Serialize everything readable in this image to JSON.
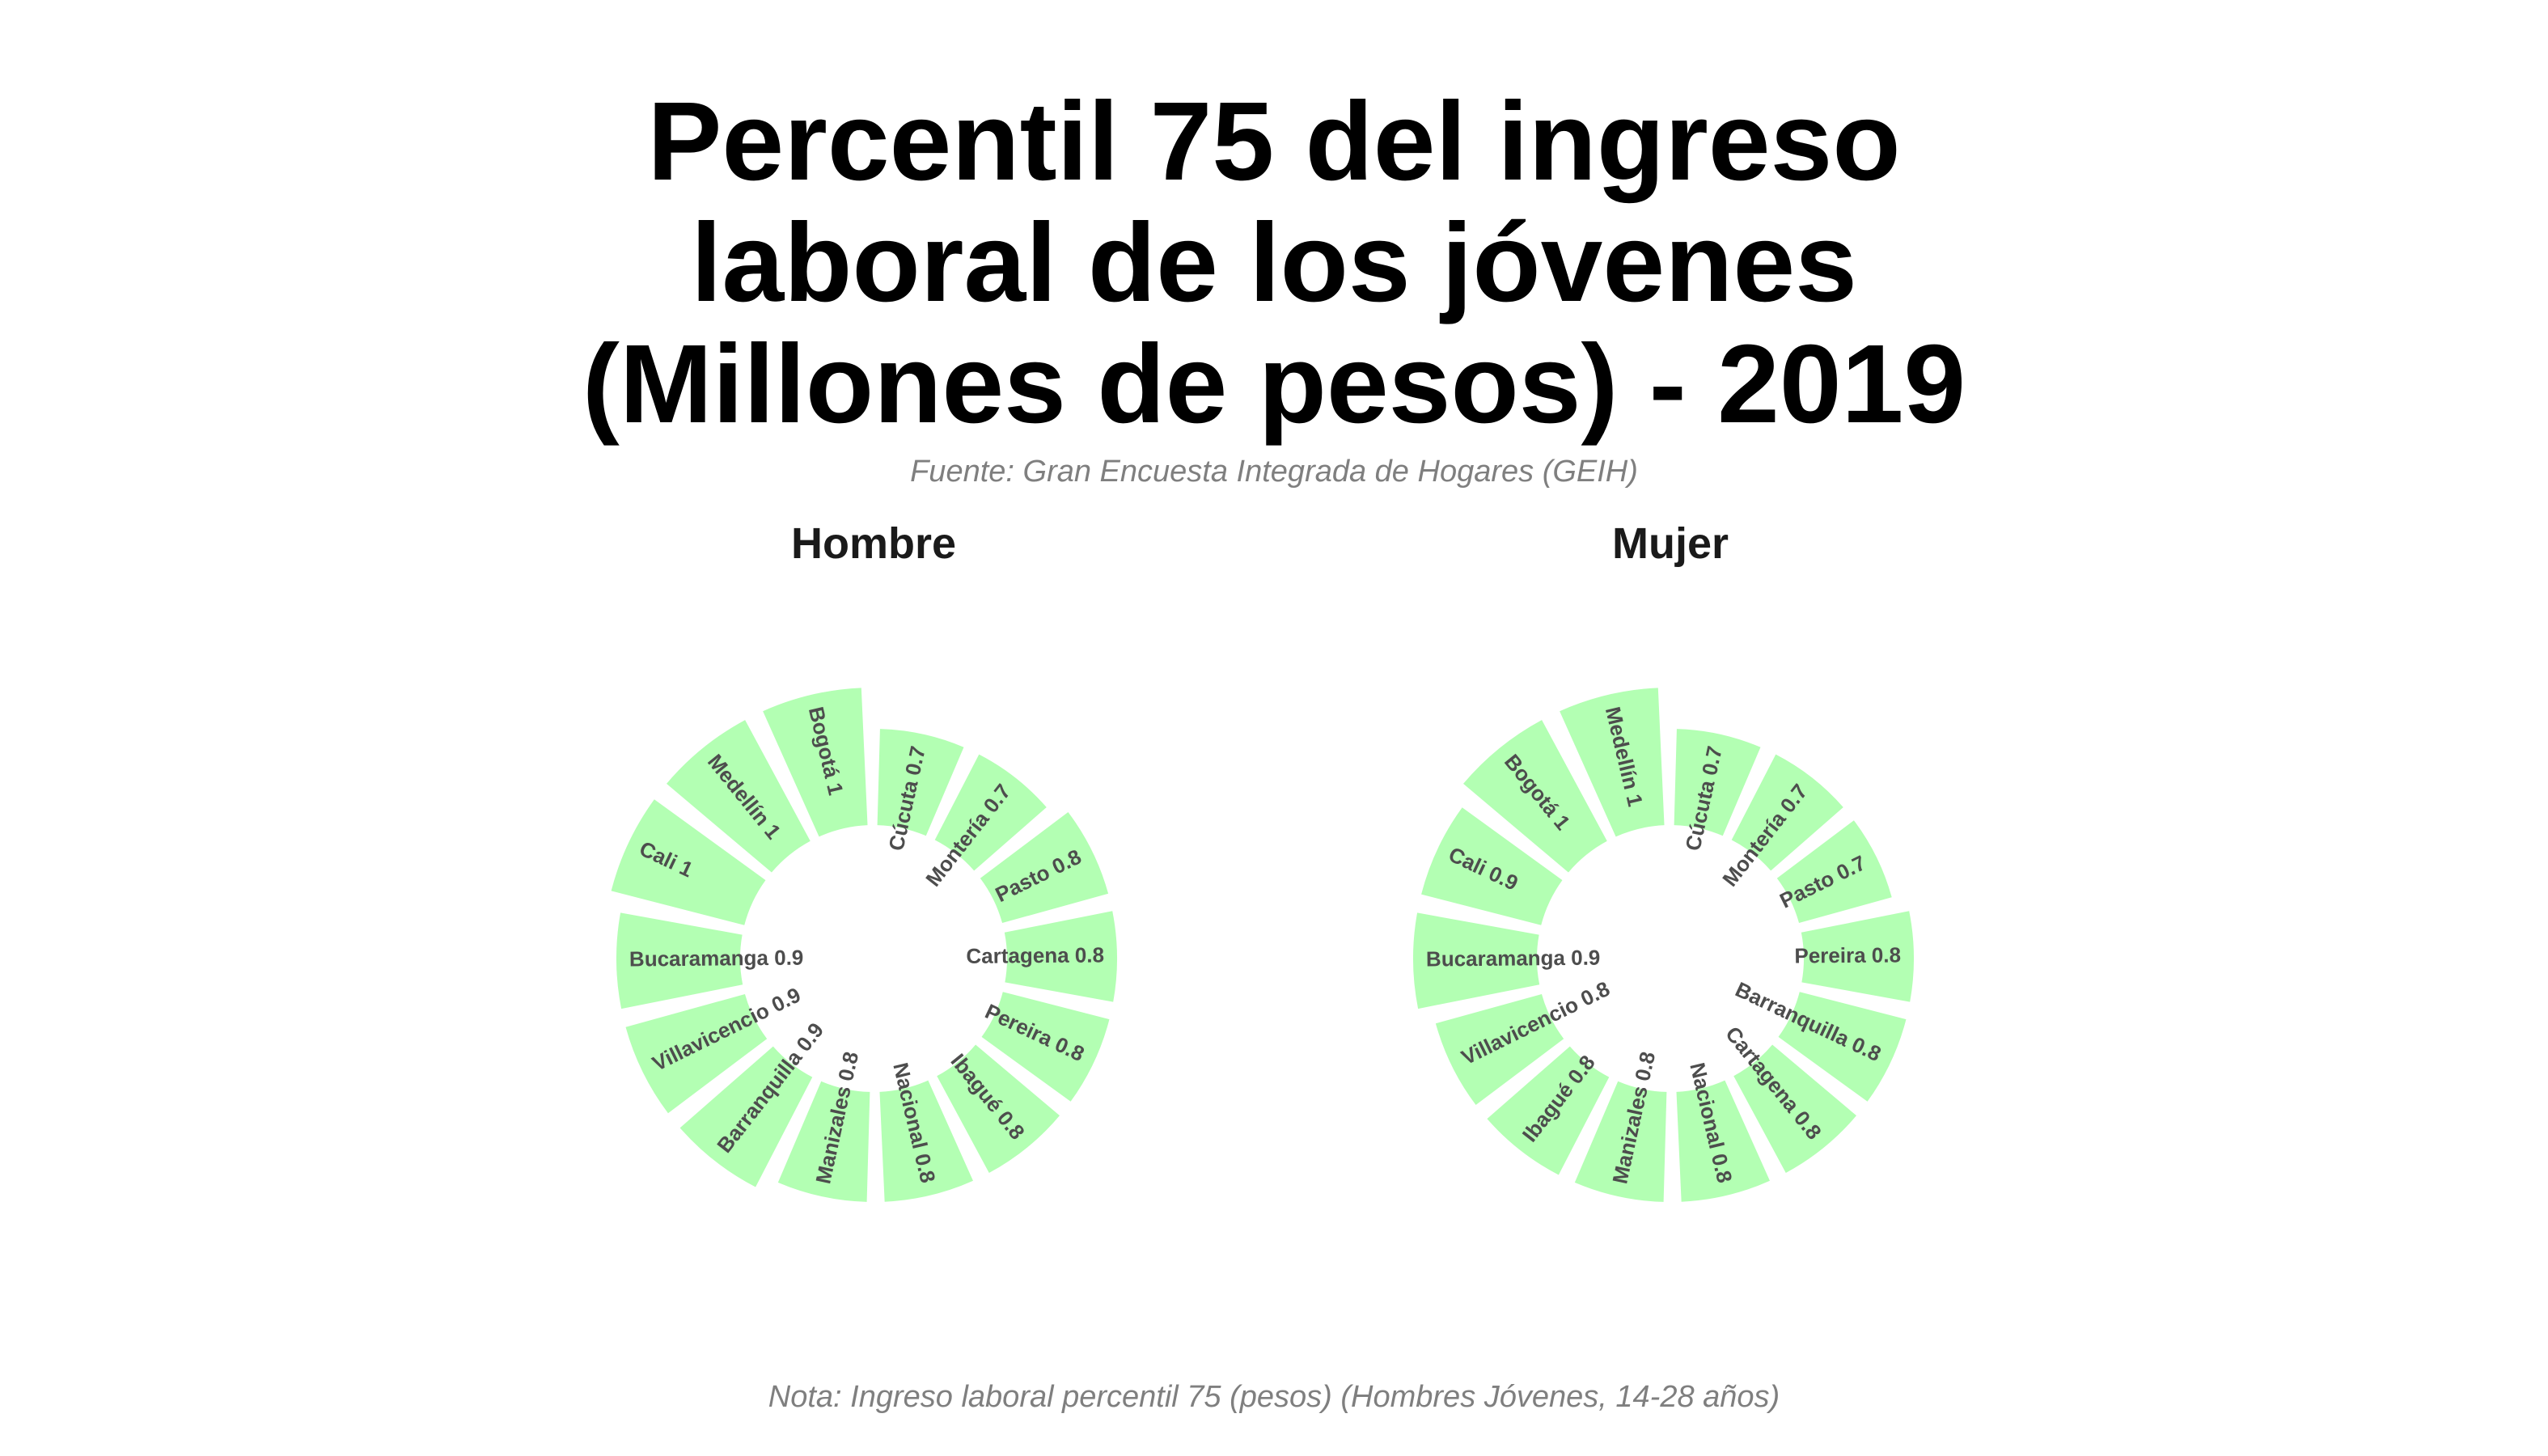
{
  "title_lines": [
    "Percentil 75 del ingreso",
    "laboral de los jóvenes",
    "(Millones de pesos) - 2019"
  ],
  "subtitle": "Fuente: Gran Encuesta Integrada de Hogares (GEIH)",
  "note": "Nota: Ingreso laboral percentil 75 (pesos) (Hombres Jóvenes, 14-28 años)",
  "colors": {
    "bar": "#b3ffb3",
    "label": "#4d4d4d"
  },
  "chart_data": [
    {
      "type": "bar",
      "coord": "polar",
      "panel": "Hombre",
      "categories": [
        "Bogotá",
        "Medellín",
        "Cali",
        "Bucaramanga",
        "Villavicencio",
        "Barranquilla",
        "Manizales",
        "Nacional",
        "Ibagué",
        "Pereira",
        "Cartagena",
        "Pasto",
        "Montería",
        "Cúcuta"
      ],
      "values": [
        1.0,
        1.0,
        1.0,
        0.9,
        0.9,
        0.9,
        0.8,
        0.8,
        0.8,
        0.8,
        0.8,
        0.8,
        0.7,
        0.7
      ],
      "labels": [
        "Bogotá 1",
        "Medellín 1",
        "Cali 1",
        "Bucaramanga 0.9",
        "Villavicencio 0.9",
        "Barranquilla 0.9",
        "Manizales 0.8",
        "Nacional 0.8",
        "Ibagué 0.8",
        "Pereira 0.8",
        "Cartagena 0.8",
        "Pasto 0.8",
        "Montería 0.7",
        "Cúcuta 0.7"
      ]
    },
    {
      "type": "bar",
      "coord": "polar",
      "panel": "Mujer",
      "categories": [
        "Medellín",
        "Bogotá",
        "Cali",
        "Bucaramanga",
        "Villavicencio",
        "Ibagué",
        "Manizales",
        "Nacional",
        "Cartagena",
        "Barranquilla",
        "Pereira",
        "Pasto",
        "Montería",
        "Cúcuta"
      ],
      "values": [
        1.0,
        1.0,
        0.9,
        0.9,
        0.8,
        0.8,
        0.8,
        0.8,
        0.8,
        0.8,
        0.8,
        0.7,
        0.7,
        0.7
      ],
      "labels": [
        "Medellín 1",
        "Bogotá 1",
        "Cali 0.9",
        "Bucaramanga 0.9",
        "Villavicencio 0.8",
        "Ibagué 0.8",
        "Manizales 0.8",
        "Nacional 0.8",
        "Cartagena 0.8",
        "Barranquilla 0.8",
        "Pereira 0.8",
        "Pasto 0.7",
        "Montería 0.7",
        "Cúcuta 0.7"
      ]
    }
  ]
}
